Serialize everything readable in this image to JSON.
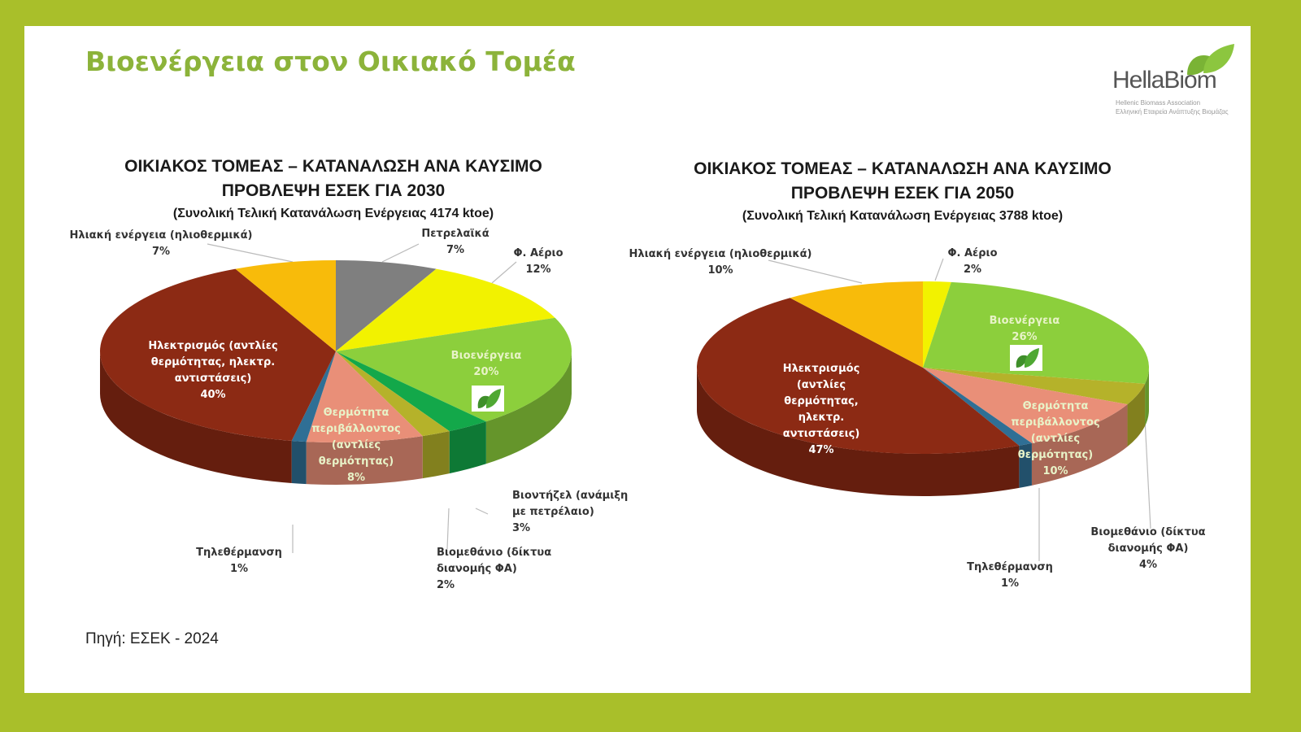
{
  "header": {
    "title": "Βιοενέργεια στον Οικιακό Τομέα"
  },
  "logo": {
    "name": "HellaBiom",
    "line1": "Hellenic Biomass Association",
    "line2": "Ελληνική Εταιρεία Ανάπτυξης Βιομάζας",
    "icon": "leaf-icon"
  },
  "footer": {
    "source": "Πηγή: ΕΣΕΚ - 2024"
  },
  "colors": {
    "border": "#a9bf2a",
    "title": "#8cb33a"
  },
  "chart_data": [
    {
      "type": "pie",
      "style": "3d",
      "title": "ΟΙΚΙΑΚΟΣ ΤΟΜΕΑΣ – ΚΑΤΑΝΑΛΩΣΗ ΑΝΑ ΚΑΥΣΙΜΟ",
      "subtitle": "ΠΡΟΒΛΕΨΗ ΕΣΕΚ ΓΙΑ 2030",
      "note": "(Συνολική Τελική Κατανάλωση Ενέργειας 4174 ktoe)",
      "slices": [
        {
          "label": "Πετρελαϊκά",
          "value": 7,
          "pct": "7%",
          "color": "#7f7f7f"
        },
        {
          "label": "Φ. Αέριο",
          "value": 12,
          "pct": "12%",
          "color": "#f2f200"
        },
        {
          "label": "Βιοενέργεια",
          "value": 20,
          "pct": "20%",
          "color": "#8ccf3c",
          "icon": "leaf-icon"
        },
        {
          "label": "Βιοντήζελ (ανάμιξη με πετρέλαιο)",
          "value": 3,
          "pct": "3%",
          "color": "#13a84a"
        },
        {
          "label": "Βιομεθάνιο (δίκτυα διανομής ΦΑ)",
          "value": 2,
          "pct": "2%",
          "color": "#b5b22a"
        },
        {
          "label": "Θερμότητα περιβάλλοντος (αντλίες θερμότητας)",
          "value": 8,
          "pct": "8%",
          "color": "#e98f78"
        },
        {
          "label": "Τηλεθέρμανση",
          "value": 1,
          "pct": "1%",
          "color": "#2f6f95"
        },
        {
          "label": "Ηλεκτρισμός (αντλίες θερμότητας, ηλεκτρ. αντιστάσεις)",
          "value": 40,
          "pct": "40%",
          "color": "#8c2a14"
        },
        {
          "label": "Ηλιακή ενέργεια (ηλιοθερμικά)",
          "value": 7,
          "pct": "7%",
          "color": "#f8bb0a"
        }
      ]
    },
    {
      "type": "pie",
      "style": "3d",
      "title": "ΟΙΚΙΑΚΟΣ ΤΟΜΕΑΣ – ΚΑΤΑΝΑΛΩΣΗ ΑΝΑ ΚΑΥΣΙΜΟ",
      "subtitle": "ΠΡΟΒΛΕΨΗ ΕΣΕΚ ΓΙΑ 2050",
      "note": "(Συνολική Τελική Κατανάλωση Ενέργειας 3788 ktoe)",
      "slices": [
        {
          "label": "Φ. Αέριο",
          "value": 2,
          "pct": "2%",
          "color": "#f2f200"
        },
        {
          "label": "Βιοενέργεια",
          "value": 26,
          "pct": "26%",
          "color": "#8ccf3c",
          "icon": "leaf-icon"
        },
        {
          "label": "Βιομεθάνιο (δίκτυα διανομής ΦΑ)",
          "value": 4,
          "pct": "4%",
          "color": "#b5b22a"
        },
        {
          "label": "Θερμότητα περιβάλλοντος (αντλίες θερμότητας)",
          "value": 10,
          "pct": "10%",
          "color": "#e98f78"
        },
        {
          "label": "Τηλεθέρμανση",
          "value": 1,
          "pct": "1%",
          "color": "#2f6f95"
        },
        {
          "label": "Ηλεκτρισμός (αντλίες θερμότητας, ηλεκτρ. αντιστάσεις)",
          "value": 47,
          "pct": "47%",
          "color": "#8c2a14"
        },
        {
          "label": "Ηλιακή ενέργεια (ηλιοθερμικά)",
          "value": 10,
          "pct": "10%",
          "color": "#f8bb0a"
        }
      ]
    }
  ]
}
